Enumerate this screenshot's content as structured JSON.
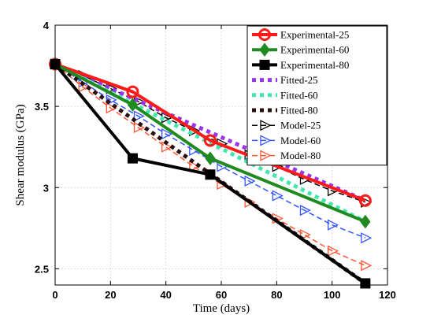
{
  "chart_data": {
    "type": "line",
    "xlabel": "Time (days)",
    "ylabel": "Shear modulus (GPa)",
    "xlim": [
      0,
      120
    ],
    "ylim": [
      2.4,
      4.0
    ],
    "xticks": [
      0,
      20,
      40,
      60,
      80,
      100,
      120
    ],
    "yticks": [
      2.5,
      3,
      3.5,
      4
    ],
    "ytick_labels": [
      "2.5",
      "3",
      "3.5",
      "4"
    ],
    "grid": true,
    "legend_position": "top-right",
    "series": [
      {
        "name": "Experimental-25",
        "color": "#ff1a1a",
        "style": "solid",
        "marker": "circle",
        "width": 4,
        "x": [
          0,
          28,
          56,
          112
        ],
        "y": [
          3.76,
          3.59,
          3.29,
          2.92
        ]
      },
      {
        "name": "Experimental-60",
        "color": "#1f8a1f",
        "style": "solid",
        "marker": "diamond",
        "width": 4,
        "x": [
          0,
          28,
          56,
          112
        ],
        "y": [
          3.76,
          3.51,
          3.18,
          2.79
        ]
      },
      {
        "name": "Experimental-80",
        "color": "#000000",
        "style": "solid",
        "marker": "square",
        "width": 4,
        "x": [
          0,
          28,
          56,
          112
        ],
        "y": [
          3.76,
          3.18,
          3.08,
          2.41
        ]
      },
      {
        "name": "Fitted-25",
        "color": "#9933ee",
        "style": "dotted",
        "marker": "none",
        "width": 5,
        "x": [
          0,
          112
        ],
        "y": [
          3.76,
          2.92
        ]
      },
      {
        "name": "Fitted-60",
        "color": "#40e8b0",
        "style": "dotted",
        "marker": "none",
        "width": 5,
        "x": [
          0,
          112
        ],
        "y": [
          3.76,
          2.79
        ]
      },
      {
        "name": "Fitted-80",
        "color": "#2a0f0f",
        "style": "dotted",
        "marker": "none",
        "width": 5,
        "x": [
          0,
          112
        ],
        "y": [
          3.76,
          2.41
        ]
      },
      {
        "name": "Model-25",
        "color": "#000000",
        "style": "dashed",
        "marker": "triangle-right",
        "width": 1.5,
        "x": [
          0,
          10,
          20,
          30,
          40,
          50,
          60,
          70,
          80,
          90,
          100,
          112
        ],
        "y": [
          3.76,
          3.69,
          3.61,
          3.53,
          3.43,
          3.35,
          3.27,
          3.2,
          3.13,
          3.05,
          2.98,
          2.91
        ]
      },
      {
        "name": "Model-60",
        "color": "#3355ff",
        "style": "dashed",
        "marker": "triangle-right",
        "width": 1.5,
        "x": [
          0,
          10,
          20,
          30,
          40,
          50,
          60,
          70,
          80,
          90,
          100,
          112
        ],
        "y": [
          3.76,
          3.65,
          3.54,
          3.44,
          3.33,
          3.23,
          3.13,
          3.04,
          2.95,
          2.86,
          2.77,
          2.69
        ]
      },
      {
        "name": "Model-80",
        "color": "#ff5533",
        "style": "dashed",
        "marker": "triangle-right",
        "width": 1.5,
        "x": [
          0,
          10,
          20,
          30,
          40,
          50,
          60,
          70,
          80,
          90,
          100,
          112
        ],
        "y": [
          3.76,
          3.62,
          3.49,
          3.37,
          3.25,
          3.13,
          3.02,
          2.91,
          2.81,
          2.71,
          2.61,
          2.52
        ]
      }
    ]
  }
}
